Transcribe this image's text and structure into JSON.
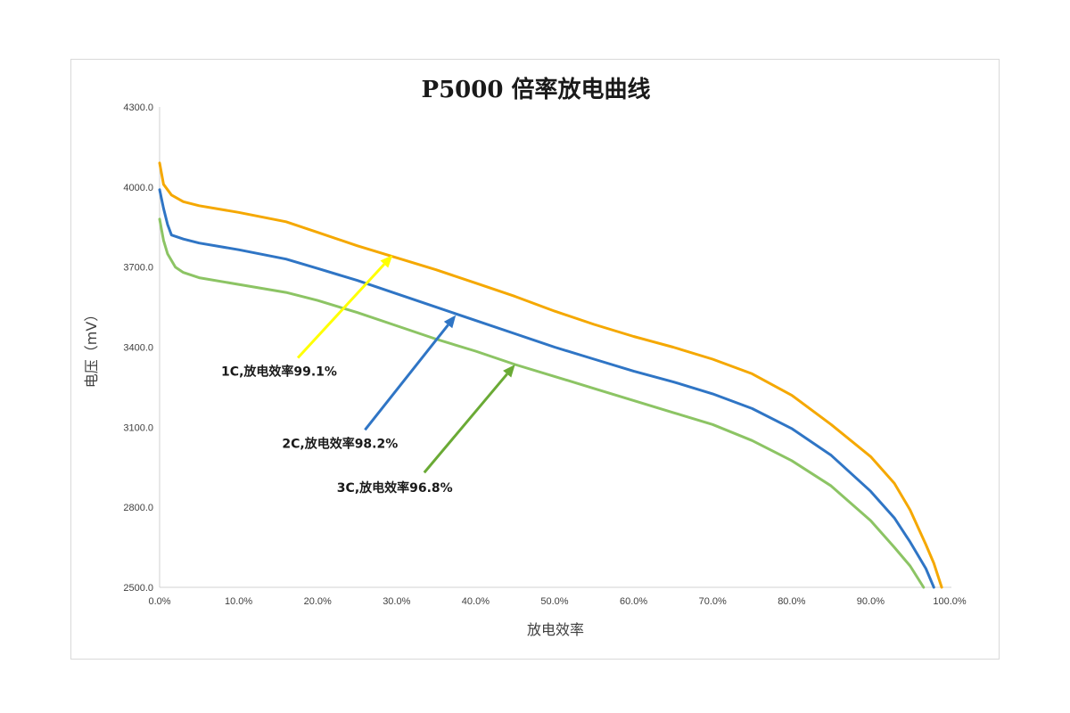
{
  "chart_data": {
    "type": "line",
    "title": "P5000 倍率放电曲线",
    "xlabel": "放电效率",
    "ylabel": "电压（mV）",
    "xlim": [
      0,
      100
    ],
    "ylim": [
      2500,
      4300
    ],
    "x_ticks": [
      "0.0%",
      "10.0%",
      "20.0%",
      "30.0%",
      "40.0%",
      "50.0%",
      "60.0%",
      "70.0%",
      "80.0%",
      "90.0%",
      "100.0%"
    ],
    "y_ticks": [
      "2500.0",
      "2800.0",
      "3100.0",
      "3400.0",
      "3700.0",
      "4000.0",
      "4300.0"
    ],
    "grid": false,
    "series": [
      {
        "color": "#f5a800",
        "points": [
          [
            0,
            4090
          ],
          [
            0.5,
            4010
          ],
          [
            1.5,
            3970
          ],
          [
            3,
            3945
          ],
          [
            5,
            3930
          ],
          [
            10,
            3905
          ],
          [
            16,
            3870
          ],
          [
            20,
            3830
          ],
          [
            25,
            3780
          ],
          [
            30,
            3735
          ],
          [
            35,
            3690
          ],
          [
            40,
            3640
          ],
          [
            45,
            3590
          ],
          [
            50,
            3535
          ],
          [
            55,
            3485
          ],
          [
            60,
            3440
          ],
          [
            65,
            3400
          ],
          [
            70,
            3355
          ],
          [
            75,
            3300
          ],
          [
            80,
            3220
          ],
          [
            85,
            3110
          ],
          [
            90,
            2990
          ],
          [
            93,
            2890
          ],
          [
            95,
            2790
          ],
          [
            97,
            2660
          ],
          [
            98,
            2590
          ],
          [
            99,
            2500
          ]
        ]
      },
      {
        "color": "#2f75c5",
        "points": [
          [
            0,
            3990
          ],
          [
            0.5,
            3920
          ],
          [
            1,
            3860
          ],
          [
            1.5,
            3820
          ],
          [
            3,
            3805
          ],
          [
            5,
            3790
          ],
          [
            10,
            3765
          ],
          [
            16,
            3730
          ],
          [
            20,
            3695
          ],
          [
            25,
            3650
          ],
          [
            30,
            3600
          ],
          [
            35,
            3550
          ],
          [
            40,
            3500
          ],
          [
            45,
            3450
          ],
          [
            50,
            3400
          ],
          [
            55,
            3355
          ],
          [
            60,
            3310
          ],
          [
            65,
            3270
          ],
          [
            70,
            3225
          ],
          [
            75,
            3170
          ],
          [
            80,
            3095
          ],
          [
            85,
            2995
          ],
          [
            90,
            2860
          ],
          [
            93,
            2760
          ],
          [
            95,
            2670
          ],
          [
            97,
            2570
          ],
          [
            98,
            2500
          ]
        ]
      },
      {
        "color": "#8cc464",
        "points": [
          [
            0,
            3880
          ],
          [
            0.5,
            3800
          ],
          [
            1,
            3750
          ],
          [
            2,
            3700
          ],
          [
            3,
            3680
          ],
          [
            5,
            3660
          ],
          [
            10,
            3635
          ],
          [
            16,
            3605
          ],
          [
            20,
            3575
          ],
          [
            25,
            3530
          ],
          [
            30,
            3480
          ],
          [
            35,
            3430
          ],
          [
            40,
            3385
          ],
          [
            45,
            3335
          ],
          [
            50,
            3290
          ],
          [
            55,
            3245
          ],
          [
            60,
            3200
          ],
          [
            65,
            3155
          ],
          [
            70,
            3110
          ],
          [
            75,
            3050
          ],
          [
            80,
            2975
          ],
          [
            85,
            2880
          ],
          [
            90,
            2750
          ],
          [
            93,
            2650
          ],
          [
            95,
            2580
          ],
          [
            96.7,
            2500
          ]
        ]
      }
    ],
    "annotations": [
      {
        "text": "1C,放电效率99.1%",
        "color": "#ffff00",
        "arrow_from": [
          17.5,
          3360
        ],
        "arrow_to": [
          29.5,
          3745
        ]
      },
      {
        "text": "2C,放电效率98.2%",
        "color": "#2f75c5",
        "arrow_from": [
          26,
          3090
        ],
        "arrow_to": [
          37.5,
          3520
        ]
      },
      {
        "text": "3C,放电效率96.8%",
        "color": "#6aaa35",
        "arrow_from": [
          33.5,
          2930
        ],
        "arrow_to": [
          45,
          3335
        ]
      }
    ]
  }
}
